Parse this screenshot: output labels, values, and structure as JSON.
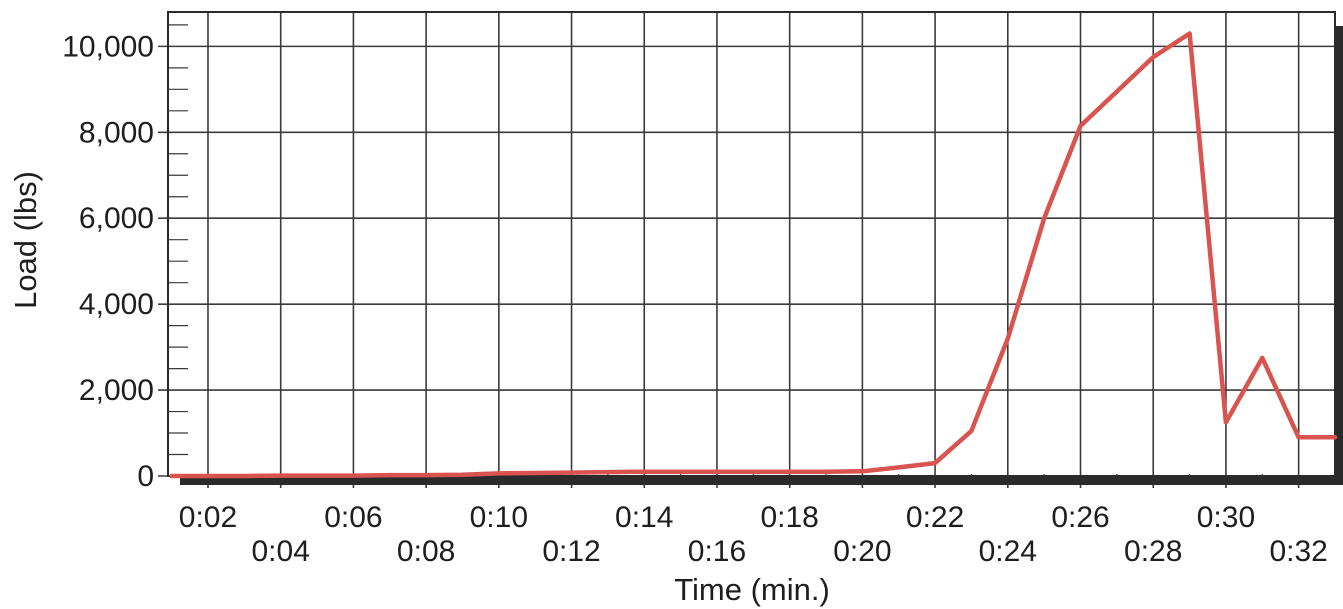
{
  "chart_data": {
    "type": "line",
    "title": "",
    "xlabel": "Time (min.)",
    "ylabel": "Load (lbs)",
    "xlim": [
      0.9,
      33
    ],
    "ylim": [
      0,
      10800
    ],
    "grid": true,
    "x_ticks": [
      "0:02",
      "0:04",
      "0:06",
      "0:08",
      "0:10",
      "0:12",
      "0:14",
      "0:16",
      "0:18",
      "0:20",
      "0:22",
      "0:24",
      "0:26",
      "0:28",
      "0:30",
      "0:32"
    ],
    "y_ticks": [
      "0",
      "2,000",
      "4,000",
      "6,000",
      "8,000",
      "10,000"
    ],
    "series": [
      {
        "color": "#d9534f",
        "x": [
          1,
          2,
          3,
          4,
          5,
          6,
          7,
          8,
          9,
          10,
          11,
          12,
          13,
          14,
          15,
          16,
          17,
          18,
          19,
          20,
          21,
          22,
          23,
          24,
          25,
          26,
          27,
          28,
          29,
          30,
          31,
          32,
          33
        ],
        "values": [
          0,
          0,
          0,
          10,
          10,
          10,
          20,
          20,
          30,
          60,
          70,
          80,
          90,
          100,
          100,
          100,
          100,
          100,
          100,
          110,
          200,
          300,
          1050,
          3200,
          6000,
          8150,
          8950,
          9750,
          10300,
          1250,
          2750,
          900,
          900
        ]
      }
    ]
  }
}
